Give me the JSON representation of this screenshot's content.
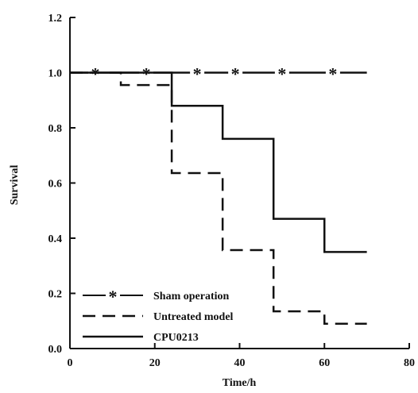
{
  "chart_data": {
    "type": "line",
    "title": "",
    "xlabel": "Time/h",
    "ylabel": "Survival",
    "xlim": [
      0,
      80
    ],
    "ylim": [
      0,
      1.2
    ],
    "x_ticks": [
      0,
      20,
      40,
      60,
      80
    ],
    "y_ticks": [
      0,
      0.2,
      0.4,
      0.6,
      0.8,
      1.0,
      1.2
    ],
    "x_tick_labels": [
      "0",
      "20",
      "40",
      "60",
      "80"
    ],
    "y_tick_labels": [
      "0.0",
      "0.2",
      "0.4",
      "0.6",
      "0.8",
      "1.0",
      "1.2"
    ],
    "grid": false,
    "legend_position": "bottom-left",
    "series": [
      {
        "name": "Sham operation",
        "line_style": "solid-with-star-markers",
        "color": "#111111",
        "x": [
          0,
          70
        ],
        "y": [
          1.0,
          1.0
        ],
        "marker_x": [
          6,
          18,
          30,
          39,
          50,
          62
        ]
      },
      {
        "name": "Untreated model",
        "line_style": "dashed",
        "color": "#111111",
        "x": [
          0,
          12,
          24,
          36,
          48,
          60,
          70
        ],
        "y": [
          1.0,
          0.955,
          0.636,
          0.357,
          0.135,
          0.09,
          0.09
        ]
      },
      {
        "name": "CPU0213",
        "line_style": "solid",
        "color": "#111111",
        "x": [
          0,
          24,
          36,
          48,
          60,
          70
        ],
        "y": [
          1.0,
          0.88,
          0.76,
          0.47,
          0.35,
          0.35
        ]
      }
    ]
  }
}
